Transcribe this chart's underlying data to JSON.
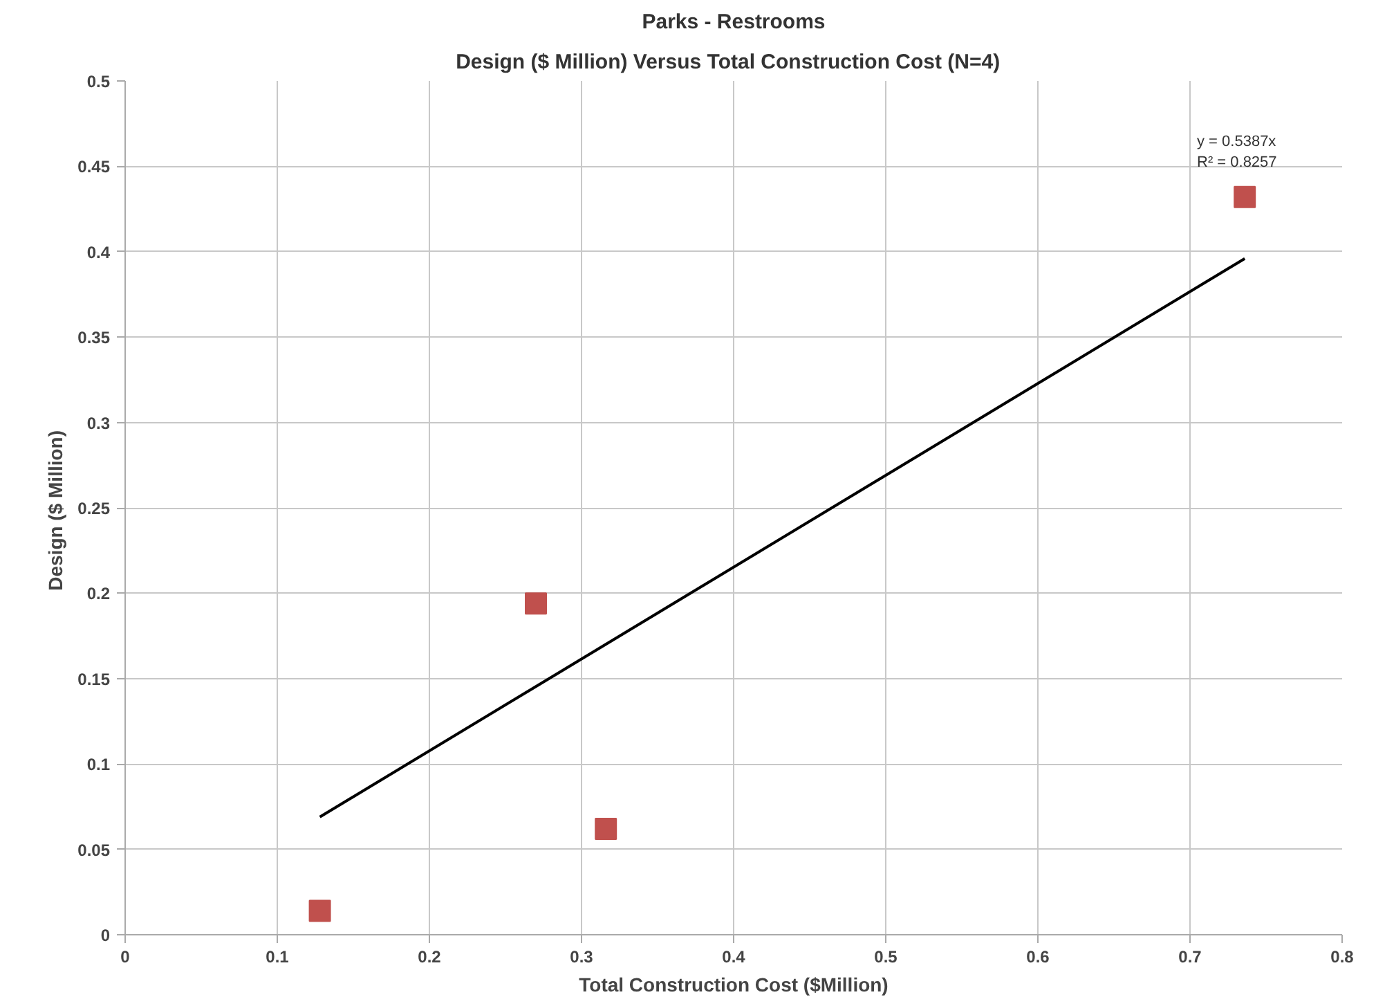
{
  "chart_data": {
    "type": "scatter",
    "title": "Parks - Restrooms",
    "subtitle": "Design  ($ Million) Versus Total Construction Cost  (N=4)",
    "xlabel": "Total Construction Cost ($Million)",
    "ylabel": "Design  ($ Million)",
    "series": [
      {
        "color": "#c0504d",
        "marker": "square",
        "x": [
          0.128,
          0.27,
          0.316,
          0.736
        ],
        "values": [
          0.014,
          0.194,
          0.062,
          0.432
        ]
      },
      {
        "type": "line",
        "color": "#000000",
        "x": [
          0.128,
          0.736
        ],
        "values": [
          0.069,
          0.396
        ]
      }
    ],
    "annotations": [
      "y = 0.5387x",
      "R² = 0.8257"
    ],
    "xlim": [
      0,
      0.8
    ],
    "xticks": [
      0,
      0.1,
      0.2,
      0.3,
      0.4,
      0.5,
      0.6,
      0.7,
      0.8
    ],
    "ylim": [
      0,
      0.5
    ],
    "yticks": [
      0,
      0.05,
      0.1,
      0.15,
      0.2,
      0.25,
      0.3,
      0.35,
      0.4,
      0.45,
      0.5
    ],
    "grid": true
  }
}
